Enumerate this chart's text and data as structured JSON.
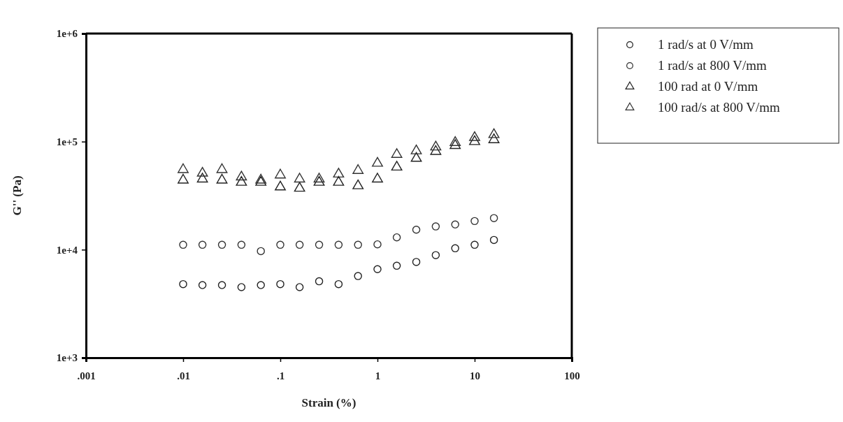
{
  "chart_data": {
    "type": "scatter",
    "xlabel": "Strain (%)",
    "ylabel": "G'' (Pa)",
    "log": "xy",
    "grid": false,
    "legend": "right",
    "x": [
      0.01,
      0.0158,
      0.0251,
      0.0398,
      0.0631,
      0.1,
      0.158,
      0.251,
      0.398,
      0.631,
      1,
      1.58,
      2.51,
      3.98,
      6.31,
      10,
      15.8
    ],
    "xlim": [
      0.001,
      100
    ],
    "xticks": [
      {
        "value": 0.001,
        "label": ".001"
      },
      {
        "value": 0.01,
        "label": ".01"
      },
      {
        "value": 0.1,
        "label": ".1"
      },
      1,
      10,
      100
    ],
    "ylim": [
      1000,
      1000000
    ],
    "yticks": [
      {
        "value": 1000,
        "label": "1e+3"
      },
      {
        "value": 10000,
        "label": "1e+4"
      },
      {
        "value": 100000,
        "label": "1e+5"
      },
      {
        "value": 1000000,
        "label": "1e+6"
      }
    ],
    "series": [
      {
        "name": "1 rad/s at 0 V/mm",
        "color": "#222222",
        "marker": "circle",
        "values": [
          4800,
          4700,
          4700,
          4500,
          4700,
          4800,
          4500,
          5100,
          4800,
          5700,
          6600,
          7100,
          7700,
          8900,
          10300,
          11100,
          12300
        ]
      },
      {
        "name": "1 rad/s at 800 V/mm",
        "color": "#333333",
        "marker": "circle",
        "values": [
          11100,
          11100,
          11100,
          11100,
          9700,
          11100,
          11100,
          11100,
          11100,
          11100,
          11200,
          13000,
          15300,
          16400,
          17100,
          18400,
          19600
        ]
      },
      {
        "name": "100 rad at 0 V/mm",
        "color": "#222222",
        "marker": "triangle",
        "values": [
          44000,
          45000,
          44000,
          42000,
          42000,
          38000,
          37000,
          42000,
          42000,
          39000,
          45000,
          58000,
          70000,
          81000,
          92000,
          100000,
          104000
        ]
      },
      {
        "name": "100 rad/s at 800 V/mm",
        "color": "#333333",
        "marker": "triangle",
        "values": [
          55000,
          51000,
          55000,
          47000,
          44000,
          49000,
          45000,
          45000,
          50000,
          54000,
          63000,
          76000,
          82000,
          89000,
          98000,
          109000,
          116000
        ]
      }
    ]
  }
}
